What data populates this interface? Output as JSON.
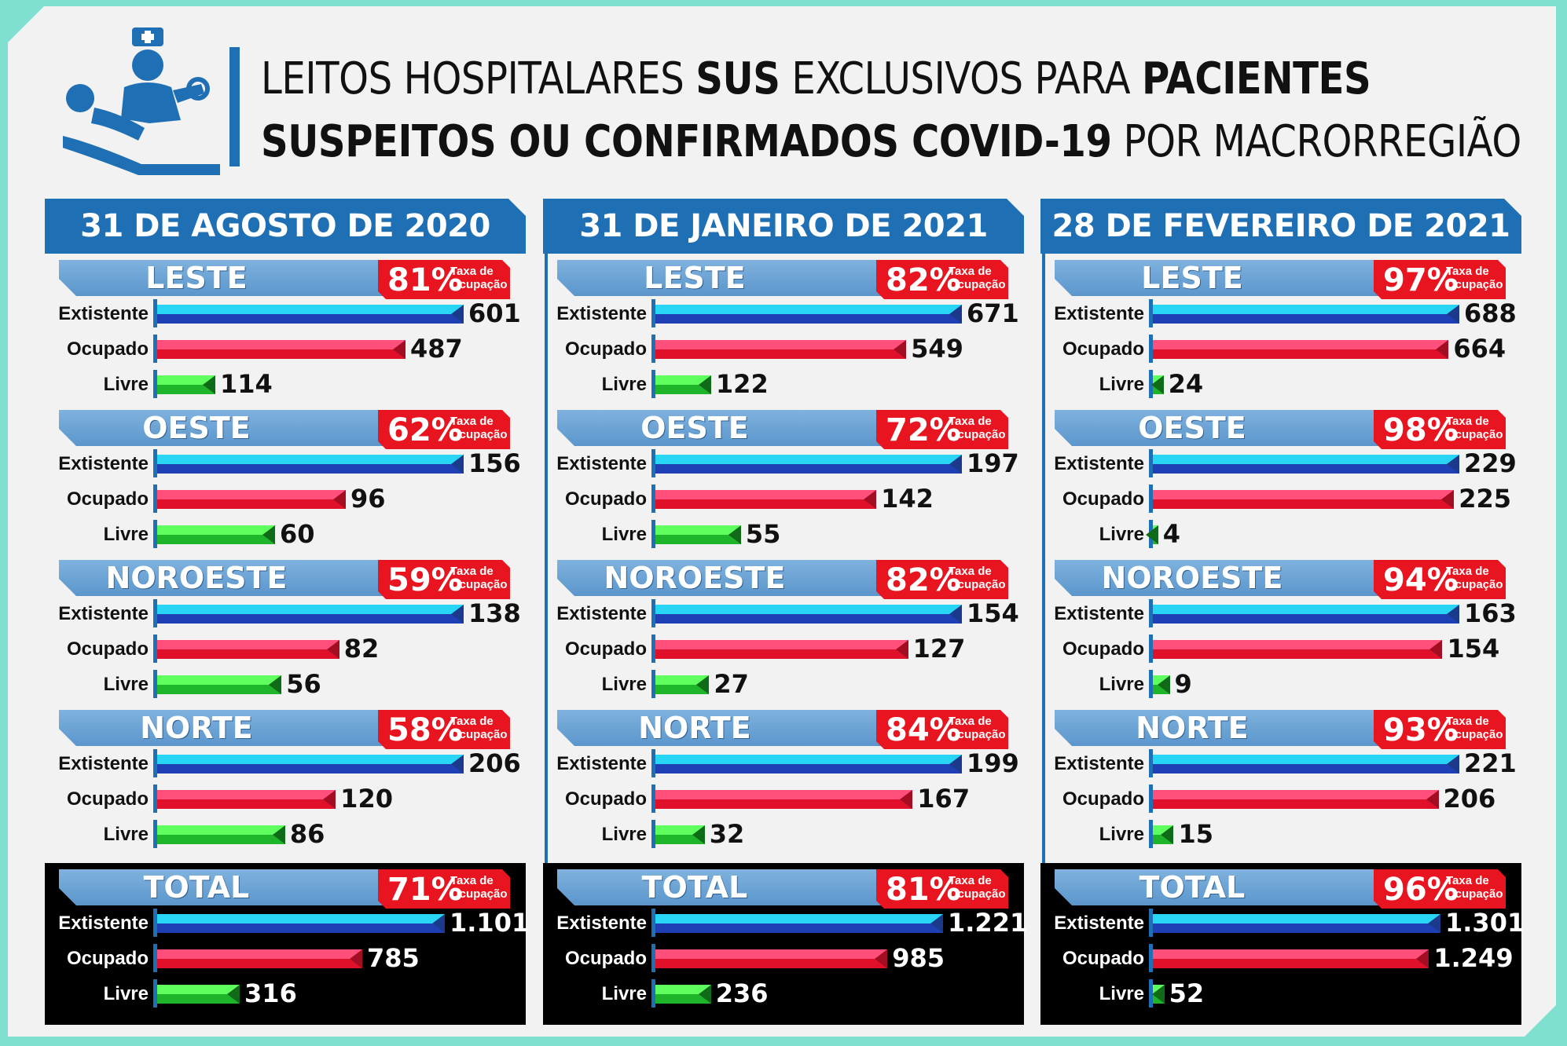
{
  "title": {
    "line1_a": "LEITOS HOSPITALARES ",
    "line1_b": "SUS",
    "line1_c": " EXCLUSIVOS PARA ",
    "line1_d": "PACIENTES",
    "line2_a": "SUSPEITOS OU CONFIRMADOS COVID-19",
    "line2_b": " POR MACRORREGIÃO"
  },
  "labels": {
    "existente": "Extistente",
    "ocupado": "Ocupado",
    "livre": "Livre",
    "rate": "Taxa de Ocupação"
  },
  "colors": {
    "header_blue": "#1f6fb5",
    "region_blue": "#6aa3d6",
    "rate_red": "#e8141f",
    "existente": "#28d5f5",
    "ocupado": "#ff4f7a",
    "livre": "#5eff5e"
  },
  "chart_data": [
    {
      "type": "bar",
      "title": "31 DE AGOSTO DE 2020",
      "series_names": [
        "Extistente",
        "Ocupado",
        "Livre"
      ],
      "groups": [
        {
          "region": "LESTE",
          "rate": "81%",
          "existente": 601,
          "ocupado": 487,
          "livre": 114,
          "existente_label": "601",
          "ocupado_label": "487",
          "livre_label": "114"
        },
        {
          "region": "OESTE",
          "rate": "62%",
          "existente": 156,
          "ocupado": 96,
          "livre": 60,
          "existente_label": "156",
          "ocupado_label": "96",
          "livre_label": "60"
        },
        {
          "region": "NOROESTE",
          "rate": "59%",
          "existente": 138,
          "ocupado": 82,
          "livre": 56,
          "existente_label": "138",
          "ocupado_label": "82",
          "livre_label": "56"
        },
        {
          "region": "NORTE",
          "rate": "58%",
          "existente": 206,
          "ocupado": 120,
          "livre": 86,
          "existente_label": "206",
          "ocupado_label": "120",
          "livre_label": "86"
        }
      ],
      "total": {
        "region": "TOTAL",
        "rate": "71%",
        "existente": 1101,
        "ocupado": 785,
        "livre": 316,
        "existente_label": "1.101",
        "ocupado_label": "785",
        "livre_label": "316"
      }
    },
    {
      "type": "bar",
      "title": "31 DE JANEIRO DE 2021",
      "series_names": [
        "Extistente",
        "Ocupado",
        "Livre"
      ],
      "groups": [
        {
          "region": "LESTE",
          "rate": "82%",
          "existente": 671,
          "ocupado": 549,
          "livre": 122,
          "existente_label": "671",
          "ocupado_label": "549",
          "livre_label": "122"
        },
        {
          "region": "OESTE",
          "rate": "72%",
          "existente": 197,
          "ocupado": 142,
          "livre": 55,
          "existente_label": "197",
          "ocupado_label": "142",
          "livre_label": "55"
        },
        {
          "region": "NOROESTE",
          "rate": "82%",
          "existente": 154,
          "ocupado": 127,
          "livre": 27,
          "existente_label": "154",
          "ocupado_label": "127",
          "livre_label": "27"
        },
        {
          "region": "NORTE",
          "rate": "84%",
          "existente": 199,
          "ocupado": 167,
          "livre": 32,
          "existente_label": "199",
          "ocupado_label": "167",
          "livre_label": "32"
        }
      ],
      "total": {
        "region": "TOTAL",
        "rate": "81%",
        "existente": 1221,
        "ocupado": 985,
        "livre": 236,
        "existente_label": "1.221",
        "ocupado_label": "985",
        "livre_label": "236"
      }
    },
    {
      "type": "bar",
      "title": "28 DE FEVEREIRO DE 2021",
      "series_names": [
        "Extistente",
        "Ocupado",
        "Livre"
      ],
      "groups": [
        {
          "region": "LESTE",
          "rate": "97%",
          "existente": 688,
          "ocupado": 664,
          "livre": 24,
          "existente_label": "688",
          "ocupado_label": "664",
          "livre_label": "24"
        },
        {
          "region": "OESTE",
          "rate": "98%",
          "existente": 229,
          "ocupado": 225,
          "livre": 4,
          "existente_label": "229",
          "ocupado_label": "225",
          "livre_label": "4"
        },
        {
          "region": "NOROESTE",
          "rate": "94%",
          "existente": 163,
          "ocupado": 154,
          "livre": 9,
          "existente_label": "163",
          "ocupado_label": "154",
          "livre_label": "9"
        },
        {
          "region": "NORTE",
          "rate": "93%",
          "existente": 221,
          "ocupado": 206,
          "livre": 15,
          "existente_label": "221",
          "ocupado_label": "206",
          "livre_label": "15"
        }
      ],
      "total": {
        "region": "TOTAL",
        "rate": "96%",
        "existente": 1301,
        "ocupado": 1249,
        "livre": 52,
        "existente_label": "1.301",
        "ocupado_label": "1.249",
        "livre_label": "52"
      }
    }
  ]
}
